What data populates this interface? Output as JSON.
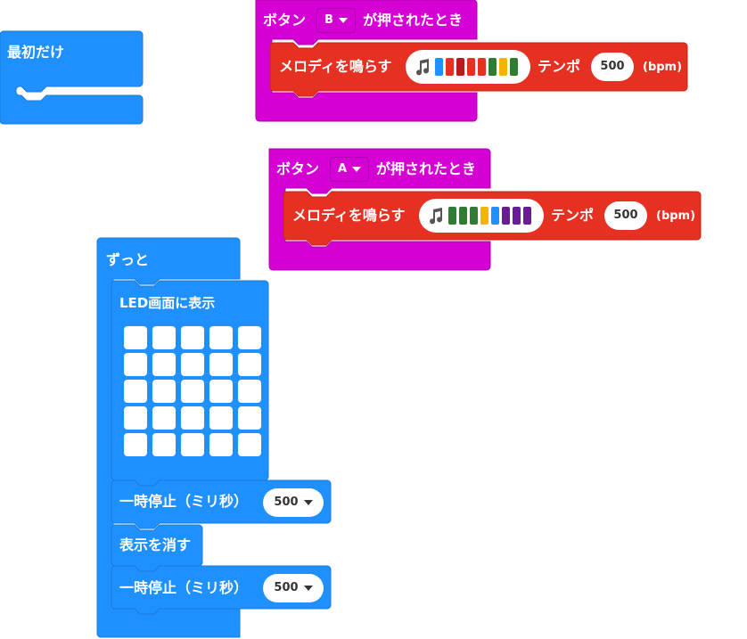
{
  "colors": {
    "basic_blue": "#1e90ff",
    "basic_blue_dark": "#1c7bd8",
    "input_magenta": "#d400d4",
    "input_magenta_dark": "#b000b0",
    "music_red": "#e63022",
    "music_red_dark": "#c4261b"
  },
  "on_start": {
    "label": "最初だけ"
  },
  "button_b_event": {
    "prefix": "ボタン",
    "button_value": "B",
    "suffix": "が押されたとき",
    "melody_block": {
      "label": "メロディを鳴らす",
      "icon": "music-note-icon",
      "notes": [
        "#1e90ff",
        "#e63022",
        "#b71c1c",
        "#e63022",
        "#e63022",
        "#2e7d32",
        "#f4b400",
        "#2e7d32"
      ],
      "tempo_label": "テンポ",
      "tempo_value": "500",
      "unit_label": "(bpm)"
    }
  },
  "button_a_event": {
    "prefix": "ボタン",
    "button_value": "A",
    "suffix": "が押されたとき",
    "melody_block": {
      "label": "メロディを鳴らす",
      "icon": "music-note-icon",
      "notes": [
        "#2e7d32",
        "#2e7d32",
        "#2e7d32",
        "#f4b400",
        "#1e90ff",
        "#6a1b9a",
        "#6a1b9a",
        "#6a1b9a"
      ],
      "tempo_label": "テンポ",
      "tempo_value": "500",
      "unit_label": "(bpm)"
    }
  },
  "forever": {
    "label": "ずっと",
    "show_leds": {
      "label": "LED画面に表示",
      "grid_rows": 5,
      "grid_cols": 5
    },
    "pause_1": {
      "label": "一時停止（ミリ秒）",
      "value": "500"
    },
    "clear_screen": {
      "label": "表示を消す"
    },
    "pause_2": {
      "label": "一時停止（ミリ秒）",
      "value": "500"
    }
  }
}
